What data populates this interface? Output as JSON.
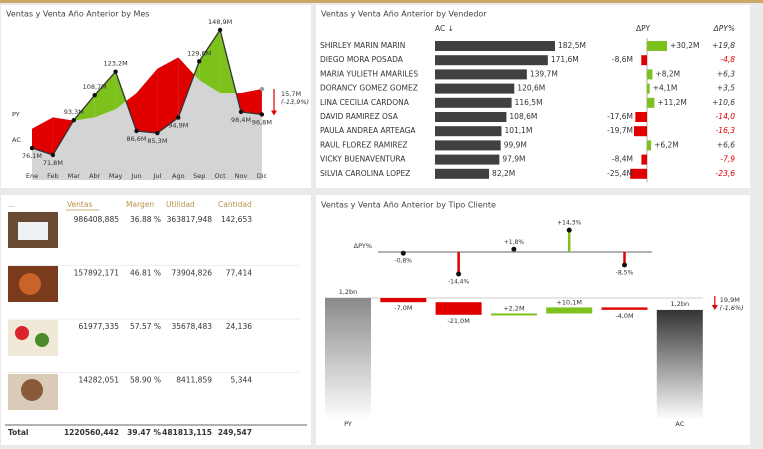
{
  "chart_data": [
    {
      "type": "line",
      "title": "Ventas y Venta Año Anterior by Mes",
      "categories": [
        "Ene",
        "Feb",
        "Mar",
        "Abr",
        "May",
        "Jun",
        "Jul",
        "Ago",
        "Sep",
        "Oct",
        "Nov",
        "Dic"
      ],
      "series": [
        {
          "name": "AC",
          "color": "#333333",
          "values": [
            76.1,
            71.8,
            93.3,
            108.7,
            123.2,
            86.6,
            85.3,
            94.9,
            129.6,
            148.9,
            98.4,
            96.8
          ],
          "value_labels": [
            "76,1M",
            "71,8M",
            "93,3M",
            "108,7M",
            "123,2M",
            "86,6M",
            "85,3M",
            "94,9M",
            "129,6M",
            "148,9M",
            "98,4M",
            "96,8M"
          ]
        },
        {
          "name": "PY",
          "color": "#d4d4d4",
          "values": [
            88,
            95,
            93,
            95,
            100,
            110,
            125,
            132,
            118,
            110,
            110,
            112.5
          ]
        }
      ],
      "positive_color": "#7cc11c",
      "negative_color": "#e00000",
      "difference": {
        "value": 15.7,
        "label": "15,7M"
      },
      "difference_pct": {
        "value": -13.9,
        "label": "(-13,9%)"
      }
    },
    {
      "type": "bar",
      "orientation": "horizontal",
      "title": "Ventas y Venta Año Anterior by Vendedor",
      "categories": [
        "SHIRLEY MARIN MARIN",
        "DIEGO MORA POSADA",
        "MARIA YULIETH AMARILES",
        "DORANCY GOMEZ GOMEZ",
        "LINA CECILIA CARDONA",
        "DAVID RAMIREZ OSA",
        "PAULA ANDREA ARTEAGA",
        "RAUL FLOREZ RAMIREZ",
        "VICKY BUENAVENTURA",
        "SILVIA CAROLINA LOPEZ"
      ],
      "series": [
        {
          "name": "AC ↓",
          "color": "#404040",
          "values": [
            182.5,
            171.6,
            139.7,
            120.6,
            116.5,
            108.6,
            101.1,
            99.9,
            97.9,
            82.2
          ],
          "value_labels": [
            "182,5M",
            "171,6M",
            "139,7M",
            "120,6M",
            "116,5M",
            "108,6M",
            "101,1M",
            "99,9M",
            "97,9M",
            "82,2M"
          ]
        },
        {
          "name": "ΔPY",
          "values": [
            30.2,
            -8.6,
            8.2,
            4.1,
            11.2,
            -17.6,
            -19.7,
            6.2,
            -8.4,
            -25.4
          ],
          "value_labels": [
            "+30,2M",
            "-8,6M",
            "+8,2M",
            "+4,1M",
            "+11,2M",
            "-17,6M",
            "-19,7M",
            "+6,2M",
            "-8,4M",
            "-25,4M"
          ]
        },
        {
          "name": "ΔPY%",
          "values": [
            19.8,
            -4.8,
            6.3,
            3.5,
            10.6,
            -14.0,
            -16.3,
            6.6,
            -7.9,
            -23.6
          ],
          "value_labels": [
            "+19,8",
            "-4,8",
            "+6,3",
            "+3,5",
            "+10,6",
            "-14,0",
            "-16,3",
            "+6,6",
            "-7,9",
            "-23,6"
          ]
        }
      ],
      "positive_color": "#7cc11c",
      "negative_color": "#e00000"
    },
    {
      "type": "waterfall",
      "title": "Ventas y Venta Año Anterior by Tipo Cliente",
      "categories": [
        "PY",
        null,
        null,
        null,
        null,
        null,
        "AC"
      ],
      "values": [
        1240.5,
        -7.0,
        -21.0,
        2.2,
        10.1,
        -4.0,
        1220.6
      ],
      "value_labels": [
        "1,2bn",
        "-7,0M",
        "-21,0M",
        "+2,2M",
        "+10,1M",
        "-4,0M",
        "1,2bn"
      ],
      "positive_color": "#7cc11c",
      "negative_color": "#e00000",
      "difference": {
        "value": 19.9,
        "label": "19,9M"
      },
      "difference_pct": {
        "value": -1.6,
        "label": "(-1,6%)"
      },
      "pct_series": {
        "name": "ΔPY%",
        "values": [
          -0.8,
          -14.4,
          1.8,
          14.3,
          -8.5
        ],
        "value_labels": [
          "-0,8%",
          "-14,4%",
          "+1,8%",
          "+14,3%",
          "-8,5%"
        ]
      }
    }
  ],
  "table": {
    "columns": [
      "...",
      "Ventas",
      "Margen",
      "Utilidad",
      "Cantidad"
    ],
    "rows": [
      [
        "986408,885",
        "36.88 %",
        "363817,948",
        "142,653"
      ],
      [
        "157892,171",
        "46.81 %",
        "73904,826",
        "77,414"
      ],
      [
        "61977,335",
        "57.57 %",
        "35678,483",
        "24,136"
      ],
      [
        "14282,051",
        "58.90 %",
        "8411,859",
        "5,344"
      ]
    ],
    "total": [
      "Total",
      "1220560,442",
      "39.47 %",
      "481813,115",
      "249,547"
    ]
  }
}
